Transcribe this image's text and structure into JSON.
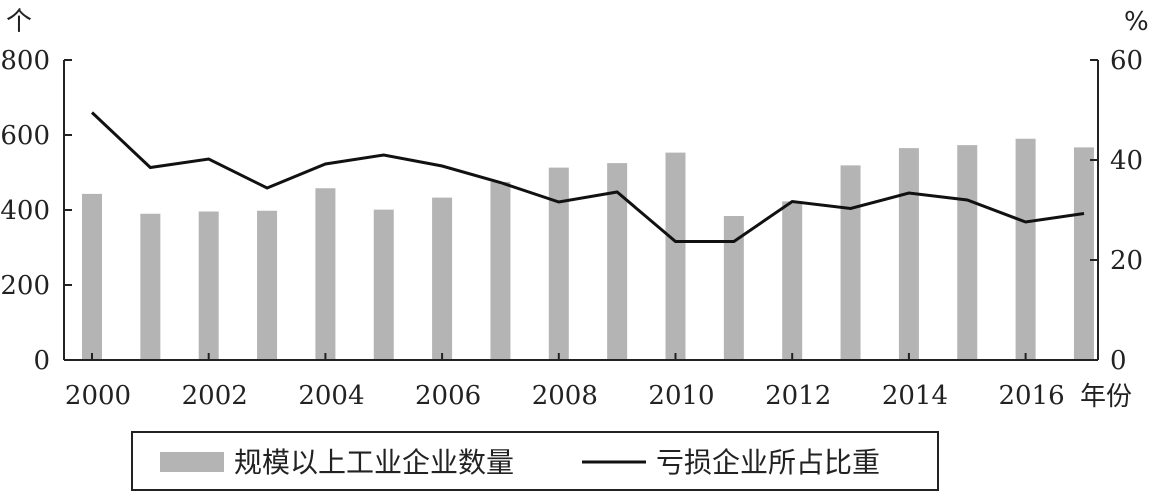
{
  "chart_data": {
    "type": "bar+line",
    "x": [
      "2000",
      "2001",
      "2002",
      "2003",
      "2004",
      "2005",
      "2006",
      "2007",
      "2008",
      "2009",
      "2010",
      "2011",
      "2012",
      "2013",
      "2014",
      "2015",
      "2016",
      "2017"
    ],
    "x_tick_labels": [
      "2000",
      "2002",
      "2004",
      "2006",
      "2008",
      "2010",
      "2012",
      "2014",
      "2016"
    ],
    "xlabel": "年份",
    "y_left": {
      "unit": "个",
      "ylim": [
        0,
        800
      ],
      "ticks": [
        "0",
        "200",
        "400",
        "600",
        "800"
      ]
    },
    "y_right": {
      "unit": "%",
      "ylim": [
        0,
        60
      ],
      "ticks": [
        "0",
        "20",
        "40",
        "60"
      ]
    },
    "series": [
      {
        "name": "规模以上工业企业数量",
        "type": "bar",
        "axis": "left",
        "color": "#b4b4b4",
        "values": [
          443,
          390,
          396,
          398,
          458,
          401,
          433,
          475,
          513,
          525,
          553,
          384,
          423,
          519,
          565,
          573,
          590,
          567
        ]
      },
      {
        "name": "亏损企业所占比重",
        "type": "line",
        "axis": "right",
        "color": "#111111",
        "values": [
          49.5,
          38.5,
          40.2,
          34.4,
          39.2,
          41.0,
          38.8,
          35.5,
          31.6,
          33.6,
          23.7,
          23.7,
          31.7,
          30.3,
          33.4,
          32.0,
          27.6,
          29.3
        ]
      }
    ],
    "grid": false,
    "legend": {
      "placement": "bottom",
      "bordered": true
    }
  }
}
